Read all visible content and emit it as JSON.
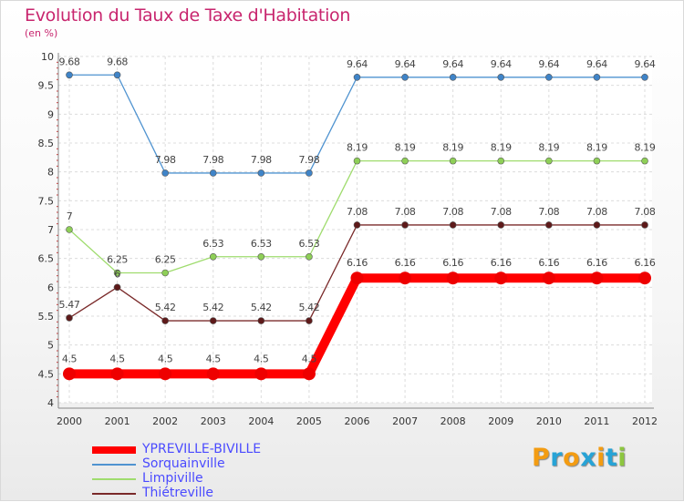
{
  "title": "Evolution du Taux de Taxe d'Habitation",
  "subtitle": "(en %)",
  "brand": {
    "letters": [
      "P",
      "r",
      "o",
      "x",
      "i",
      "t",
      "i"
    ],
    "colors": [
      "#f39c12",
      "#27a3d6",
      "#f39c12",
      "#27a3d6",
      "#f39c12",
      "#27a3d6",
      "#8dc63f"
    ]
  },
  "chart_data": {
    "type": "line",
    "x": [
      "2000",
      "2001",
      "2002",
      "2003",
      "2004",
      "2005",
      "2006",
      "2007",
      "2008",
      "2009",
      "2010",
      "2011",
      "2012"
    ],
    "ylim": [
      4,
      10
    ],
    "yticks": [
      "4",
      "4.5",
      "5",
      "5.5",
      "6",
      "6.5",
      "7",
      "7.5",
      "8",
      "8.5",
      "9",
      "9.5",
      "10"
    ],
    "grid": true,
    "legend_position": "bottom-left",
    "series": [
      {
        "name": "Sorquainville",
        "color": "#4f93d0",
        "marker": "#3f84c8",
        "values": [
          9.68,
          9.68,
          7.98,
          7.98,
          7.98,
          7.98,
          9.64,
          9.64,
          9.64,
          9.64,
          9.64,
          9.64,
          9.64
        ],
        "labels": [
          "9.68",
          "9.68",
          "7.98",
          "7.98",
          "7.98",
          "7.98",
          "9.64",
          "9.64",
          "9.64",
          "9.64",
          "9.64",
          "9.64",
          "9.64"
        ]
      },
      {
        "name": "Limpiville",
        "color": "#9fdc6e",
        "marker": "#8ecf57",
        "values": [
          7,
          6.25,
          6.25,
          6.53,
          6.53,
          6.53,
          8.19,
          8.19,
          8.19,
          8.19,
          8.19,
          8.19,
          8.19
        ],
        "labels": [
          "7",
          "6.25",
          "6.25",
          "6.53",
          "6.53",
          "6.53",
          "8.19",
          "8.19",
          "8.19",
          "8.19",
          "8.19",
          "8.19",
          "8.19"
        ]
      },
      {
        "name": "Thiétreville",
        "color": "#7a2a2a",
        "marker": "#5e1a1a",
        "values": [
          5.47,
          6,
          5.42,
          5.42,
          5.42,
          5.42,
          7.08,
          7.08,
          7.08,
          7.08,
          7.08,
          7.08,
          7.08
        ],
        "labels": [
          "5.47",
          "6",
          "5.42",
          "5.42",
          "5.42",
          "5.42",
          "7.08",
          "7.08",
          "7.08",
          "7.08",
          "7.08",
          "7.08",
          "7.08"
        ]
      },
      {
        "name": "YPREVILLE-BIVILLE",
        "color": "#ff0000",
        "marker": "#ee0000",
        "bold": true,
        "values": [
          4.5,
          4.5,
          4.5,
          4.5,
          4.5,
          4.5,
          6.16,
          6.16,
          6.16,
          6.16,
          6.16,
          6.16,
          6.16
        ],
        "labels": [
          "4.5",
          "4.5",
          "4.5",
          "4.5",
          "4.5",
          "4.5",
          "6.16",
          "6.16",
          "6.16",
          "6.16",
          "6.16",
          "6.16",
          "6.16"
        ]
      }
    ],
    "legend_order": [
      "YPREVILLE-BIVILLE",
      "Sorquainville",
      "Limpiville",
      "Thiétreville"
    ]
  }
}
